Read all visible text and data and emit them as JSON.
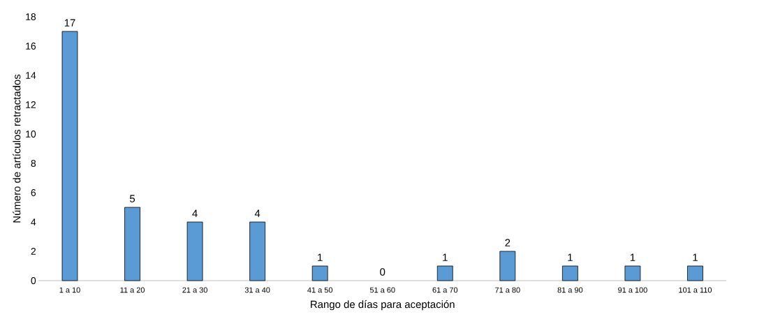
{
  "chart_data": {
    "type": "bar",
    "xlabel": "Rango de días para aceptación",
    "ylabel": "Número de artículos retractados",
    "categories": [
      "1 a 10",
      "11 a 20",
      "21 a 30",
      "31 a 40",
      "41 a 50",
      "51 a 60",
      "61 a 70",
      "71 a 80",
      "81 a 90",
      "91 a 100",
      "101 a 110"
    ],
    "values": [
      17,
      5,
      4,
      4,
      1,
      0,
      1,
      2,
      1,
      1,
      1
    ],
    "color": "#5b9bd5",
    "ylim": [
      0,
      18
    ],
    "yticks": [
      0,
      2,
      4,
      6,
      8,
      10,
      12,
      14,
      16,
      18
    ],
    "data_labels": true,
    "grid": false
  }
}
